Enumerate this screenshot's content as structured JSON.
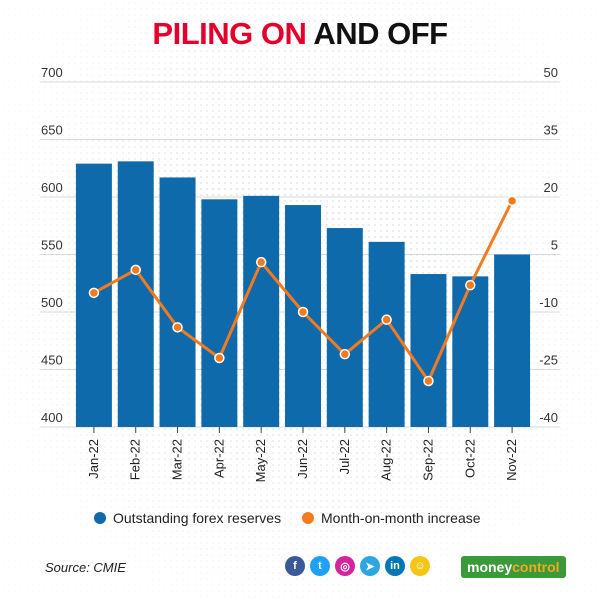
{
  "title": {
    "part1": "PILING ON",
    "part2": " AND OFF"
  },
  "colors": {
    "bar": "#0e6aab",
    "line": "#f47a20",
    "title_red": "#e4002b"
  },
  "chart_data": {
    "type": "bar+line",
    "categories": [
      "Jan-22",
      "Feb-22",
      "Mar-22",
      "Apr-22",
      "May-22",
      "Jun-22",
      "Jul-22",
      "Aug-22",
      "Sep-22",
      "Oct-22",
      "Nov-22"
    ],
    "series": [
      {
        "name": "Outstanding forex reserves",
        "type": "bar",
        "axis": "left",
        "values": [
          629,
          631,
          617,
          598,
          601,
          593,
          573,
          561,
          533,
          531,
          550
        ]
      },
      {
        "name": "Month-on-month increase",
        "type": "line",
        "axis": "right",
        "values": [
          -5,
          1,
          -14,
          -22,
          3,
          -10,
          -21,
          -12,
          -28,
          -3,
          19
        ]
      }
    ],
    "y_left": {
      "lim": [
        400,
        700
      ],
      "ticks": [
        400,
        450,
        500,
        550,
        600,
        650,
        700
      ]
    },
    "y_right": {
      "lim": [
        -40,
        50
      ],
      "ticks": [
        -40,
        -25,
        -10,
        5,
        20,
        35,
        50
      ]
    },
    "grid": true,
    "legend": "bottom"
  },
  "footer": {
    "source": "Source: CMIE",
    "social_icons": [
      {
        "name": "facebook-icon",
        "glyph": "f",
        "color": "#3b5998"
      },
      {
        "name": "twitter-icon",
        "glyph": "t",
        "color": "#1da1f2"
      },
      {
        "name": "instagram-icon",
        "glyph": "◎",
        "color": "#d6249f"
      },
      {
        "name": "telegram-icon",
        "glyph": "➤",
        "color": "#2ca5e0"
      },
      {
        "name": "linkedin-icon",
        "glyph": "in",
        "color": "#0077b5"
      },
      {
        "name": "snapchat-icon",
        "glyph": "☺",
        "color": "#f5c518"
      }
    ],
    "brand": {
      "part1": "money",
      "part2": "control"
    }
  }
}
